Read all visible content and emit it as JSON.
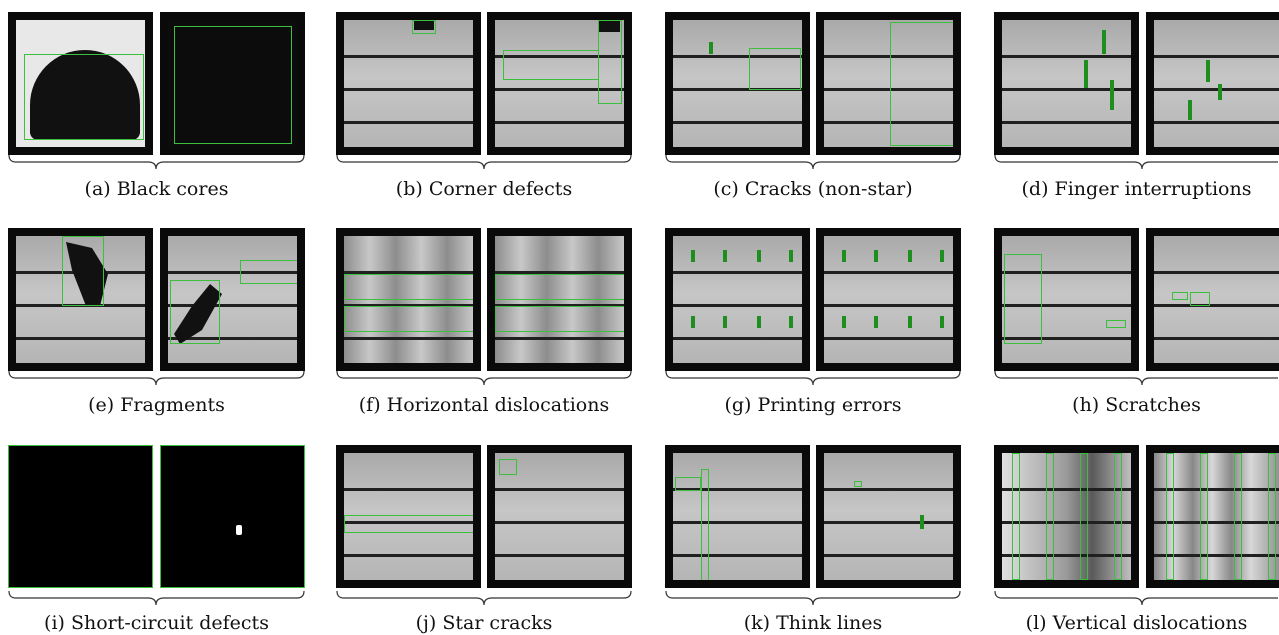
{
  "captions": {
    "a": "(a) Black cores",
    "b": "(b) Corner defects",
    "c": "(c) Cracks (non-star)",
    "d": "(d) Finger interruptions",
    "e": "(e) Fragments",
    "f": "(f) Horizontal dislocations",
    "g": "(g) Printing errors",
    "h": "(h) Scratches",
    "i": "(i) Short-circuit defects",
    "j": "(j) Star cracks",
    "k": "(k) Think lines",
    "l": "(l) Vertical dislocations"
  },
  "colors": {
    "annotation_box": "#3cbf3c",
    "background": "#ffffff",
    "caption": "#111111"
  }
}
